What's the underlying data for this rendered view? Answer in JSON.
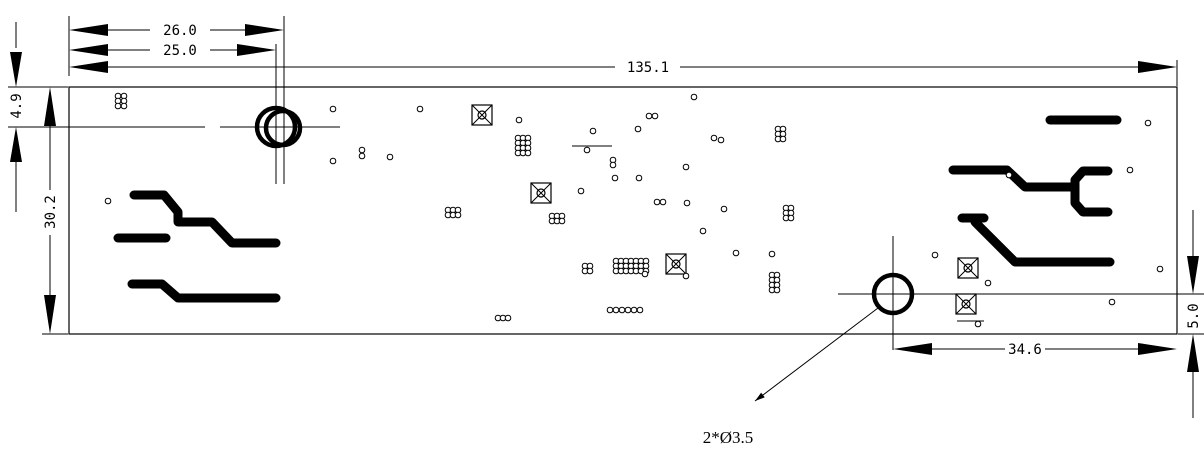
{
  "dimensions": {
    "hole_offset_26": "26.0",
    "hole_offset_25": "25.0",
    "board_length": "135.1",
    "hole_top_margin": "4.9",
    "board_width": "30.2",
    "hole_bottom_margin": "5.0",
    "hole_right_offset": "34.6"
  },
  "callout": {
    "mounting_holes": "2*Ø3.5"
  }
}
